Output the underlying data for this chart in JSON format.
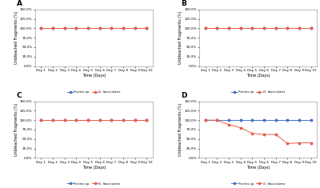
{
  "days": [
    "Day 1",
    "Day 2",
    "Day 3",
    "Day 4",
    "Day 5",
    "Day 6",
    "Day 7",
    "Day 8",
    "Day 9",
    "Day 10"
  ],
  "panels": {
    "A": {
      "porites": [
        100,
        100,
        100,
        100,
        100,
        100,
        100,
        100,
        100,
        100
      ],
      "galaxea": [
        100,
        100,
        100,
        100,
        100,
        100,
        100,
        100,
        100,
        100
      ],
      "ylim": [
        0,
        150
      ],
      "yticks": [
        0,
        25,
        50,
        75,
        100,
        125,
        150
      ],
      "ytick_labels": [
        "0.0%",
        "25.0%",
        "50.0%",
        "75.0%",
        "100.0%",
        "125.0%",
        "150.0%"
      ]
    },
    "B": {
      "porites": [
        100,
        100,
        100,
        100,
        100,
        100,
        100,
        100,
        100,
        100
      ],
      "galaxea": [
        100,
        100,
        100,
        100,
        100,
        100,
        100,
        100,
        100,
        100
      ],
      "ylim": [
        0,
        150
      ],
      "yticks": [
        0,
        25,
        50,
        75,
        100,
        125,
        150
      ],
      "ytick_labels": [
        "0.0%",
        "25.0%",
        "50.0%",
        "75.0%",
        "100.0%",
        "125.0%",
        "150.0%"
      ]
    },
    "C": {
      "porites": [
        100,
        100,
        100,
        100,
        100,
        100,
        100,
        100,
        100,
        100
      ],
      "galaxea": [
        100,
        100,
        100,
        100,
        100,
        100,
        100,
        100,
        100,
        100
      ],
      "ylim": [
        0,
        150
      ],
      "yticks": [
        0,
        25,
        50,
        75,
        100,
        125,
        150
      ],
      "ytick_labels": [
        "0.0%",
        "25.0%",
        "50.0%",
        "75.0%",
        "100.0%",
        "125.0%",
        "150.0%"
      ]
    },
    "D": {
      "porites": [
        100,
        100,
        100,
        100,
        100,
        100,
        100,
        100,
        100,
        100
      ],
      "galaxea": [
        100,
        100,
        88,
        80,
        65,
        62,
        62,
        38,
        40,
        40
      ],
      "ylim": [
        0,
        150
      ],
      "yticks": [
        0,
        25,
        50,
        75,
        100,
        125,
        150
      ],
      "ytick_labels": [
        "0.0%",
        "25.0%",
        "50.0%",
        "75.0%",
        "100.0%",
        "125.0%",
        "150.0%"
      ]
    }
  },
  "porites_color": "#4472C4",
  "galaxea_color": "#E8604C",
  "porites_label": "Porites sp.",
  "galaxea_label": "G. fascicularis",
  "xlabel": "Time (Days)",
  "ylabel": "Unbleached Fragments (%)",
  "bg_color": "#FFFFFF",
  "linewidth": 0.7,
  "markersize": 1.8,
  "panel_labels": [
    "A",
    "B",
    "C",
    "D"
  ]
}
